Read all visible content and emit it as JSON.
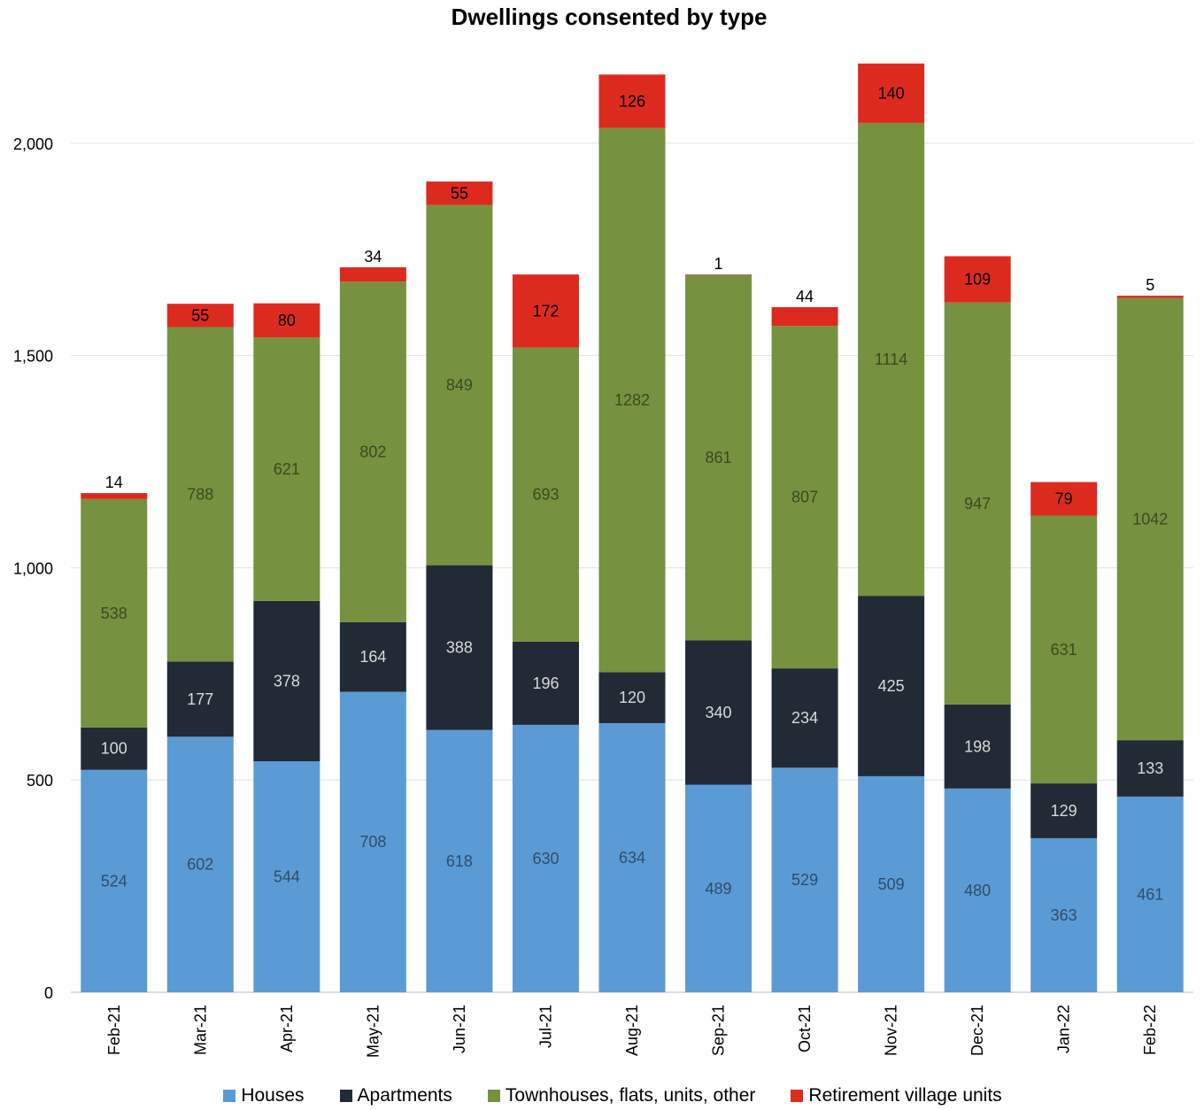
{
  "chart_data": {
    "type": "bar",
    "stacked": true,
    "title": "Dwellings consented by type",
    "xlabel": "",
    "ylabel": "",
    "ylim": [
      0,
      2200
    ],
    "yticks": [
      0,
      500,
      1000,
      1500,
      2000
    ],
    "ytick_labels": [
      "0",
      "500",
      "1,000",
      "1,500",
      "2,000"
    ],
    "grid": true,
    "legend_position": "bottom",
    "categories": [
      "Feb-21",
      "Mar-21",
      "Apr-21",
      "May-21",
      "Jun-21",
      "Jul-21",
      "Aug-21",
      "Sep-21",
      "Oct-21",
      "Nov-21",
      "Dec-21",
      "Jan-22",
      "Feb-22"
    ],
    "series": [
      {
        "name": "Houses",
        "color": "#5b9bd5",
        "label_color": "#2e4d6b",
        "values": [
          524,
          602,
          544,
          708,
          618,
          630,
          634,
          489,
          529,
          509,
          480,
          363,
          461
        ]
      },
      {
        "name": "Apartments",
        "color": "#222a35",
        "label_color": "#d9d9d9",
        "values": [
          100,
          177,
          378,
          164,
          388,
          196,
          120,
          340,
          234,
          425,
          198,
          129,
          133
        ]
      },
      {
        "name": "Townhouses, flats, units, other",
        "color": "#76913f",
        "label_color": "#3b4a1f",
        "values": [
          538,
          788,
          621,
          802,
          849,
          693,
          1282,
          861,
          807,
          1114,
          947,
          631,
          1042
        ]
      },
      {
        "name": "Retirement village units",
        "color": "#dd2a1f",
        "label_color": "#000000",
        "values": [
          14,
          55,
          80,
          34,
          55,
          172,
          126,
          1,
          44,
          140,
          109,
          79,
          5
        ]
      }
    ]
  }
}
